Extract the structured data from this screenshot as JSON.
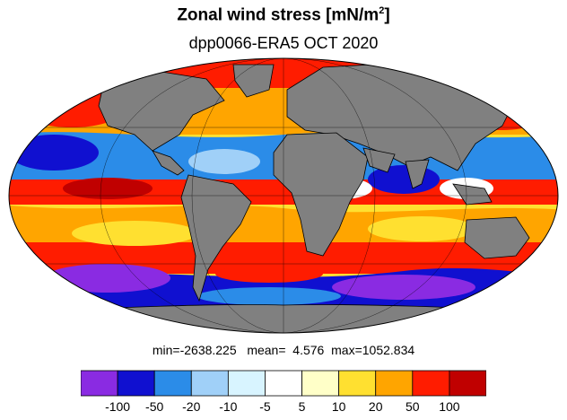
{
  "title": {
    "main": "Zonal wind stress [mN/m",
    "sup": "2",
    "close": "]"
  },
  "subtitle": "dpp0066-ERA5  OCT 2020",
  "stats": {
    "min_label": "min=",
    "min": "-2638.225",
    "mean_label": "mean=",
    "mean": "4.576",
    "max_label": "max=",
    "max": "1052.834"
  },
  "colorbar": {
    "colors": [
      "#8a2be2",
      "#1010d0",
      "#2b8ce8",
      "#a0d0f8",
      "#d8f4ff",
      "#ffffff",
      "#ffffc8",
      "#ffe030",
      "#ffa500",
      "#ff1c00",
      "#c00000"
    ],
    "labels": [
      "-100",
      "-50",
      "-20",
      "-10",
      "-5",
      "5",
      "10",
      "20",
      "50",
      "100"
    ]
  },
  "map": {
    "projection": "mollweide",
    "land_color": "#808080",
    "graticule_color": "#000000"
  }
}
